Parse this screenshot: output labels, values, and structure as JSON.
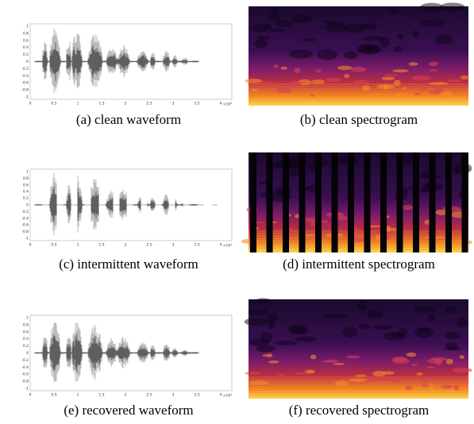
{
  "panels": [
    {
      "caption": "(a) clean waveform",
      "yticks": [
        "1",
        "0.8",
        "0.6",
        "0.4",
        "0.2",
        "0",
        "-0.2",
        "-0.4",
        "-0.6",
        "-0.8",
        "-1"
      ],
      "xticks": [
        "0",
        "0.5",
        "1",
        "1.5",
        "2",
        "2.5",
        "3",
        "3.5",
        "4"
      ],
      "x_exponent": "×10⁴"
    },
    {
      "caption": "(b) clean spectrogram"
    },
    {
      "caption": "(c) intermittent waveform",
      "yticks": [
        "1",
        "0.8",
        "0.6",
        "0.4",
        "0.2",
        "0",
        "-0.2",
        "-0.4",
        "-0.6",
        "-0.8",
        "-1"
      ],
      "xticks": [
        "0",
        "0.5",
        "1",
        "1.5",
        "2",
        "2.5",
        "3",
        "3.5",
        "4"
      ],
      "x_exponent": "×10⁴"
    },
    {
      "caption": "(d) intermittent spectrogram"
    },
    {
      "caption": "(e) recovered waveform",
      "yticks": [
        "1",
        "0.8",
        "0.6",
        "0.4",
        "0.2",
        "0",
        "-0.2",
        "-0.4",
        "-0.6",
        "-0.8",
        "-1"
      ],
      "xticks": [
        "0",
        "0.5",
        "1",
        "1.5",
        "2",
        "2.5",
        "3",
        "3.5",
        "4"
      ],
      "x_exponent": "×10⁴"
    },
    {
      "caption": "(f) recovered spectrogram"
    }
  ]
}
